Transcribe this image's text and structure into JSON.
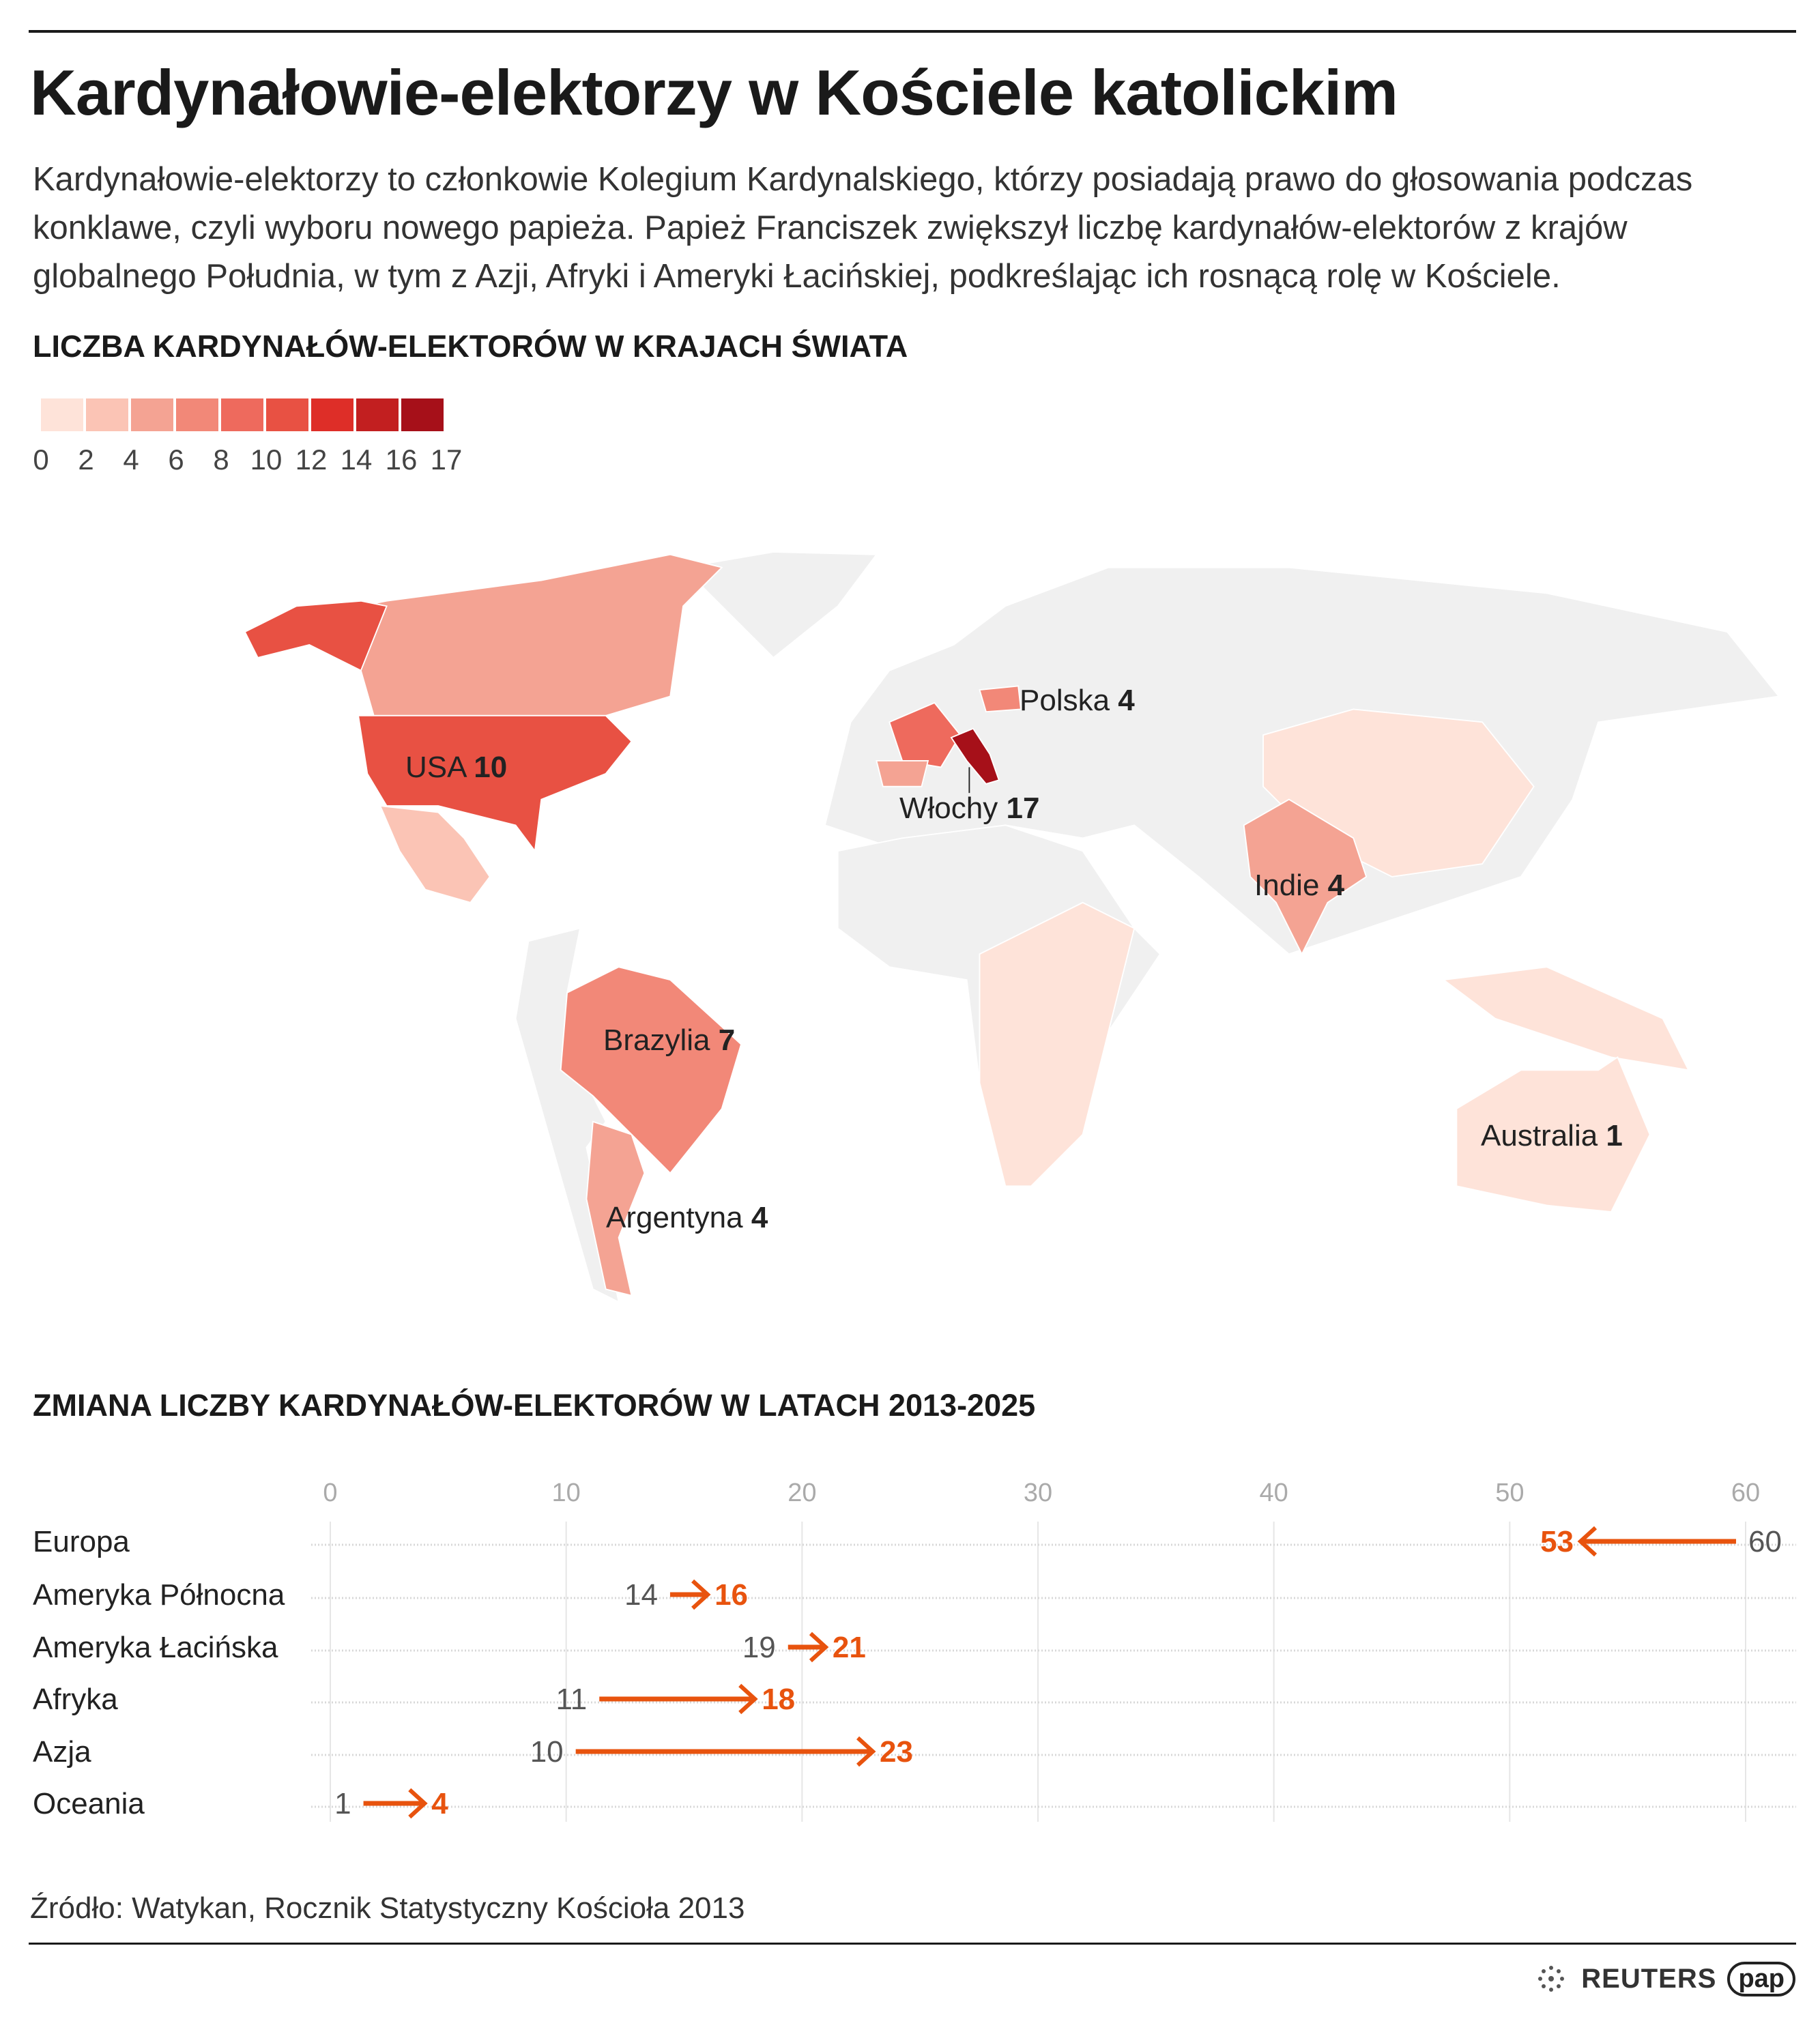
{
  "title": "Kardynałowie-elektorzy w Kościele katolickim",
  "subtitle": "Kardynałowie-elektorzy to członkowie Kolegium Kardynalskiego, którzy posiadają prawo do głosowania podczas konklawe, czyli wyboru nowego papieża. Papież Franciszek zwiększył liczbę kardynałów-elektorów z krajów globalnego Południa, w tym z Azji, Afryki i Ameryki Łacińskiej, podkreślając ich rosnącą rolę w Kościele.",
  "map_section": {
    "heading": "LICZBA KARDYNAŁÓW-ELEKTORÓW W KRAJACH ŚWIATA",
    "legend": {
      "colors": [
        "#fee3d9",
        "#fbc4b5",
        "#f4a393",
        "#f28878",
        "#ee6a5d",
        "#e85143",
        "#de2e28",
        "#c21f20",
        "#a61019"
      ],
      "labels": [
        "0",
        "2",
        "4",
        "6",
        "8",
        "10",
        "12",
        "14",
        "16",
        "17"
      ]
    },
    "labels": [
      {
        "name": "USA",
        "count": "10"
      },
      {
        "name": "Polska",
        "count": "4"
      },
      {
        "name": "Włochy",
        "count": "17"
      },
      {
        "name": "Indie",
        "count": "4"
      },
      {
        "name": "Brazylia",
        "count": "7"
      },
      {
        "name": "Australia",
        "count": "1"
      },
      {
        "name": "Argentyna",
        "count": "4"
      }
    ],
    "no_data_color": "#f0f0f0"
  },
  "chart_data": {
    "type": "arrow-dumbbell",
    "title": "ZMIANA LICZBY KARDYNAŁÓW-ELEKTORÓW W LATACH 2013-2025",
    "xlim": [
      0,
      60
    ],
    "xticks": [
      "0",
      "10",
      "20",
      "30",
      "40",
      "50",
      "60"
    ],
    "categories": [
      "Europa",
      "Ameryka Północna",
      "Ameryka Łacińska",
      "Afryka",
      "Azja",
      "Oceania"
    ],
    "series": [
      {
        "name": "2013",
        "values": [
          60,
          14,
          19,
          11,
          10,
          1
        ]
      },
      {
        "name": "2025",
        "values": [
          53,
          16,
          21,
          18,
          23,
          4
        ]
      }
    ],
    "arrow_color": "#e8530e"
  },
  "source": "Źródło: Watykan, Rocznik Statystyczny Kościoła 2013",
  "logos": {
    "reuters": "REUTERS",
    "pap": "pap"
  }
}
